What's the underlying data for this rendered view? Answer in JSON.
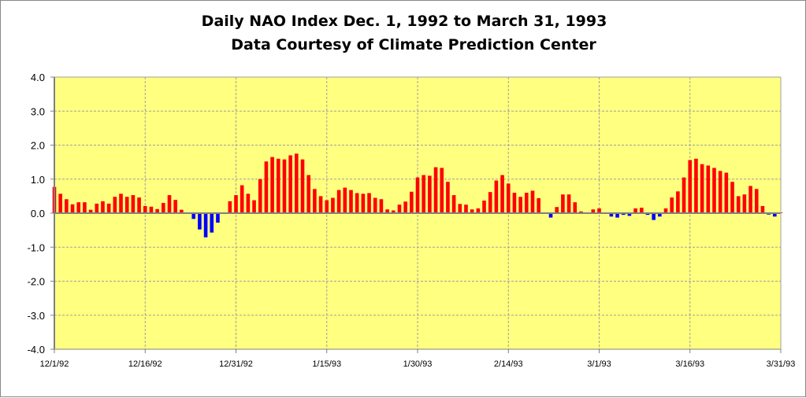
{
  "chart_data": {
    "type": "bar",
    "title": "Daily NAO Index Dec. 1, 1992 to March 31, 1993",
    "subtitle": "Data Courtesy of Climate Prediction Center",
    "xlabel": "",
    "ylabel": "",
    "ylim": [
      -4.0,
      4.0
    ],
    "yticks": [
      "4.0",
      "3.0",
      "2.0",
      "1.0",
      "0.0",
      "-1.0",
      "-2.0",
      "-3.0",
      "-4.0"
    ],
    "xtick_labels": [
      "12/1/92",
      "12/16/92",
      "12/31/92",
      "1/15/93",
      "1/30/93",
      "2/14/93",
      "3/1/93",
      "3/16/93",
      "3/31/93"
    ],
    "xtick_interval_days": 15,
    "start_date": "12/1/92",
    "end_date": "3/31/93",
    "grid": true,
    "legend": "none",
    "colors": {
      "positive": "#FF0000",
      "negative": "#0000FF",
      "plot_bg": "#FFFF80",
      "grid": "#A0A0A0"
    },
    "values": [
      0.77,
      0.57,
      0.41,
      0.26,
      0.32,
      0.32,
      0.1,
      0.28,
      0.35,
      0.28,
      0.48,
      0.57,
      0.48,
      0.53,
      0.46,
      0.21,
      0.19,
      0.12,
      0.3,
      0.53,
      0.39,
      0.1,
      0.0,
      -0.17,
      -0.48,
      -0.71,
      -0.57,
      -0.28,
      0.02,
      0.35,
      0.53,
      0.82,
      0.57,
      0.38,
      1.0,
      1.52,
      1.65,
      1.6,
      1.58,
      1.7,
      1.75,
      1.58,
      1.12,
      0.71,
      0.5,
      0.38,
      0.45,
      0.68,
      0.75,
      0.68,
      0.59,
      0.57,
      0.59,
      0.45,
      0.41,
      0.11,
      0.08,
      0.25,
      0.34,
      0.63,
      1.05,
      1.12,
      1.1,
      1.35,
      1.33,
      0.92,
      0.53,
      0.27,
      0.25,
      0.11,
      0.14,
      0.37,
      0.62,
      0.96,
      1.12,
      0.87,
      0.6,
      0.48,
      0.6,
      0.66,
      0.44,
      0.02,
      -0.13,
      0.18,
      0.55,
      0.55,
      0.32,
      0.05,
      0.0,
      0.11,
      0.14,
      0.0,
      -0.1,
      -0.13,
      -0.05,
      -0.08,
      0.14,
      0.16,
      -0.05,
      -0.2,
      -0.1,
      0.14,
      0.46,
      0.64,
      1.05,
      1.56,
      1.6,
      1.44,
      1.4,
      1.33,
      1.24,
      1.19,
      0.92,
      0.5,
      0.55,
      0.8,
      0.71,
      0.21,
      -0.04,
      -0.1,
      0.02
    ]
  }
}
